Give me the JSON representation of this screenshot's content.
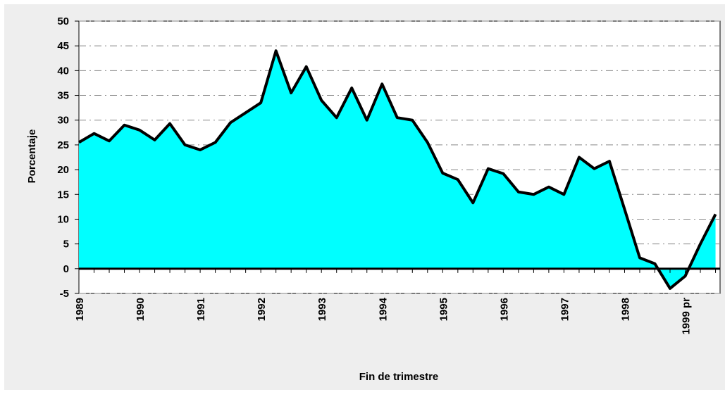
{
  "chart_data": {
    "type": "area",
    "x_label": "Fin de trimestre",
    "y_label": "Porcentaje",
    "categories": [
      "1989",
      null,
      null,
      null,
      "1990",
      null,
      null,
      null,
      "1991",
      null,
      null,
      null,
      "1992",
      null,
      null,
      null,
      "1993",
      null,
      null,
      null,
      "1994",
      null,
      null,
      null,
      "1995",
      null,
      null,
      null,
      "1996",
      null,
      null,
      null,
      "1997",
      null,
      null,
      null,
      "1998",
      null,
      null,
      null,
      "1999 pr",
      null,
      null
    ],
    "values": [
      25.5,
      27.3,
      25.8,
      29,
      28,
      26,
      29.3,
      25,
      24,
      25.5,
      29.5,
      31.5,
      33.5,
      44,
      35.5,
      40.8,
      34,
      30.5,
      36.5,
      30,
      37.3,
      30.5,
      30,
      25.5,
      19.3,
      18,
      13.3,
      20.2,
      19.2,
      15.5,
      15,
      16.5,
      15,
      22.5,
      20.2,
      21.7,
      12,
      2.2,
      1,
      -4,
      -1.5,
      5,
      11
    ],
    "color": "#00ffff",
    "line_color": "#000000",
    "ylim": [
      -5,
      50
    ],
    "yticks": [
      -5,
      0,
      5,
      10,
      15,
      20,
      25,
      30,
      35,
      40,
      45,
      50
    ],
    "grid": true
  }
}
